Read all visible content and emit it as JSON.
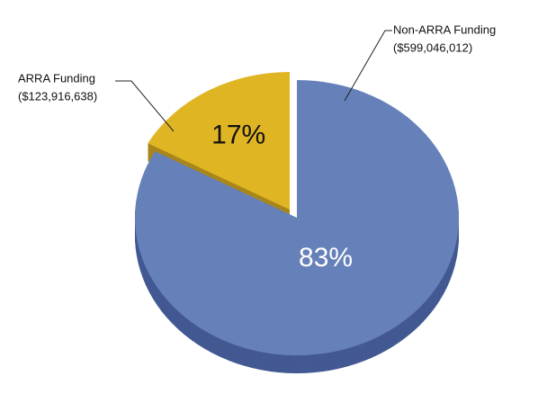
{
  "chart_data": {
    "type": "pie",
    "categories": [
      "Non-ARRA Funding",
      "ARRA Funding"
    ],
    "amount_labels": [
      "($599,046,012)",
      "($123,916,638)"
    ],
    "values": [
      83,
      17
    ],
    "value_labels": [
      "83%",
      "17%"
    ],
    "colors": [
      "#6680b9",
      "#e0b524"
    ],
    "side_colors": [
      "#435992",
      "#a8861b"
    ]
  }
}
